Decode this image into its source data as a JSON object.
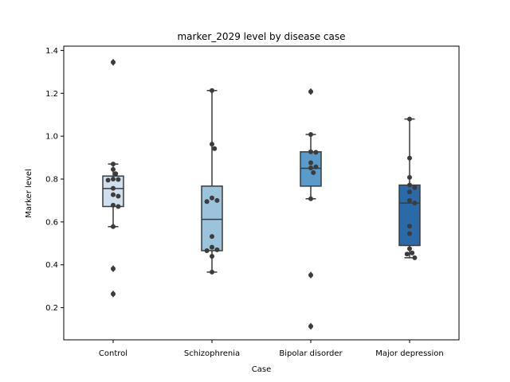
{
  "chart_data": {
    "type": "box",
    "title": "marker_2029 level by disease case",
    "xlabel": "Case",
    "ylabel": "Marker level",
    "ylim": [
      0.05,
      1.42
    ],
    "yticks": [
      0.2,
      0.4,
      0.6,
      0.8,
      1.0,
      1.2,
      1.4
    ],
    "ytick_labels": [
      "0.2",
      "0.4",
      "0.6",
      "0.8",
      "1.0",
      "1.2",
      "1.4"
    ],
    "categories": [
      "Control",
      "Schizophrenia",
      "Bipolar disorder",
      "Major depression"
    ],
    "colors": [
      "#cfdfee",
      "#9cc3dc",
      "#5a9bc9",
      "#2b6aa8"
    ],
    "grid": false,
    "boxes": [
      {
        "q1": 0.672,
        "median": 0.756,
        "q3": 0.814,
        "whisker_low": 0.578,
        "whisker_high": 0.87,
        "outliers": [
          1.345,
          0.382,
          0.264
        ],
        "points": [
          0.87,
          0.845,
          0.825,
          0.8,
          0.798,
          0.795,
          0.757,
          0.727,
          0.72,
          0.678,
          0.672,
          0.578,
          1.345,
          0.382,
          0.264
        ]
      },
      {
        "q1": 0.466,
        "median": 0.612,
        "q3": 0.767,
        "whisker_low": 0.366,
        "whisker_high": 1.213,
        "outliers": [],
        "points": [
          1.213,
          0.963,
          0.942,
          0.712,
          0.7,
          0.695,
          0.532,
          0.482,
          0.47,
          0.466,
          0.44,
          0.366
        ]
      },
      {
        "q1": 0.767,
        "median": 0.85,
        "q3": 0.927,
        "whisker_low": 0.708,
        "whisker_high": 1.008,
        "outliers": [
          1.208,
          0.352,
          0.113
        ],
        "points": [
          1.008,
          0.927,
          0.925,
          0.876,
          0.857,
          0.852,
          0.83,
          0.708,
          1.208,
          0.352,
          0.113
        ]
      },
      {
        "q1": 0.49,
        "median": 0.688,
        "q3": 0.772,
        "whisker_low": 0.433,
        "whisker_high": 1.08,
        "outliers": [],
        "points": [
          1.08,
          0.898,
          0.808,
          0.772,
          0.76,
          0.74,
          0.7,
          0.688,
          0.58,
          0.545,
          0.475,
          0.455,
          0.45,
          0.433
        ]
      }
    ]
  }
}
